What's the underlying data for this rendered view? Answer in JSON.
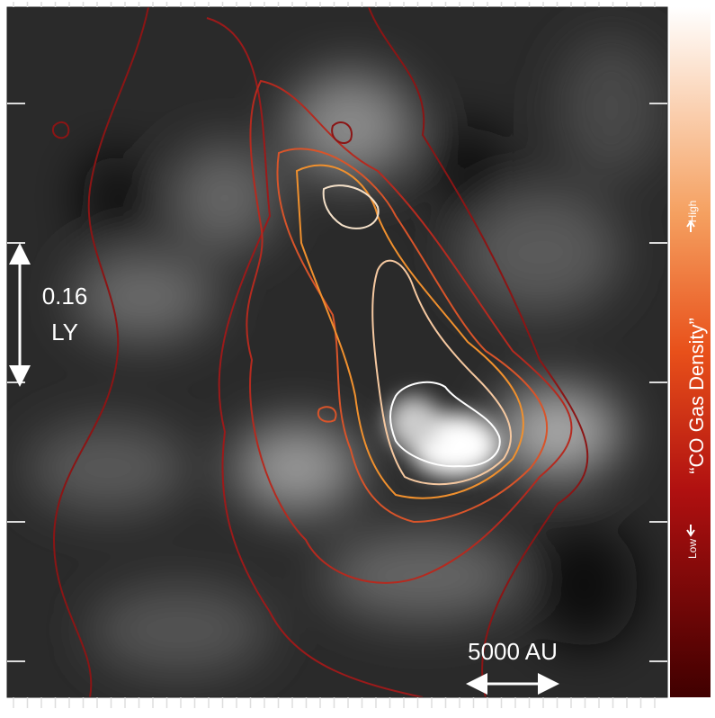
{
  "scale_bar_vertical": {
    "line1": "0.16",
    "line2": "LY"
  },
  "scale_bar_horizontal": {
    "label": "5000 AU"
  },
  "colorbar": {
    "title": "“CO Gas Density”",
    "high": "High",
    "low": "Low"
  }
}
